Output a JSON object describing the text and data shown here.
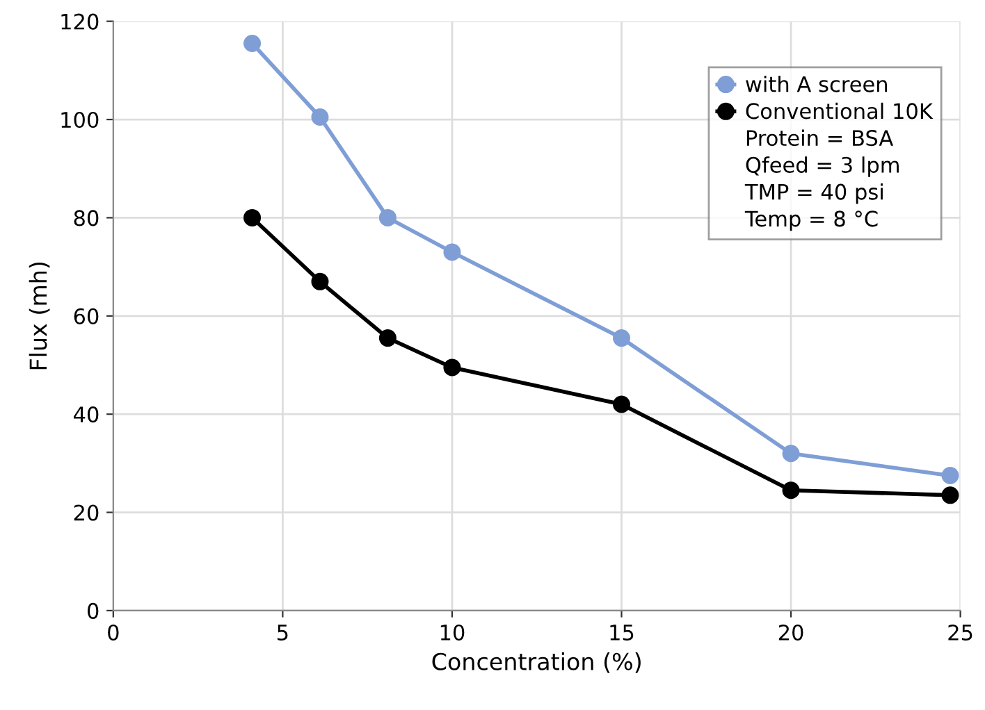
{
  "chart_data": {
    "type": "line",
    "xlabel": "Concentration (%)",
    "ylabel": "Flux (mh)",
    "x": [
      4.1,
      6.1,
      8.1,
      10,
      15,
      20,
      24.7
    ],
    "series": [
      {
        "name": "with A screen",
        "color": "#7f9ed6",
        "values": [
          115.5,
          100.5,
          80,
          73,
          55.5,
          32,
          27.5
        ]
      },
      {
        "name": "Conventional 10K",
        "color": "#000000",
        "values": [
          80,
          67,
          55.5,
          49.5,
          42,
          24.5,
          23.5
        ]
      }
    ],
    "annotations": [
      "Protein = BSA",
      "Qfeed = 3 lpm",
      "TMP = 40 psi",
      "Temp = 8 °C"
    ],
    "xlim": [
      0,
      25
    ],
    "ylim": [
      0,
      120
    ],
    "xticks": [
      0,
      5,
      10,
      15,
      20,
      25
    ],
    "yticks": [
      0,
      20,
      40,
      60,
      80,
      100,
      120
    ],
    "grid": true,
    "legend": "top right",
    "marker": "circle",
    "line_style": "solid"
  }
}
